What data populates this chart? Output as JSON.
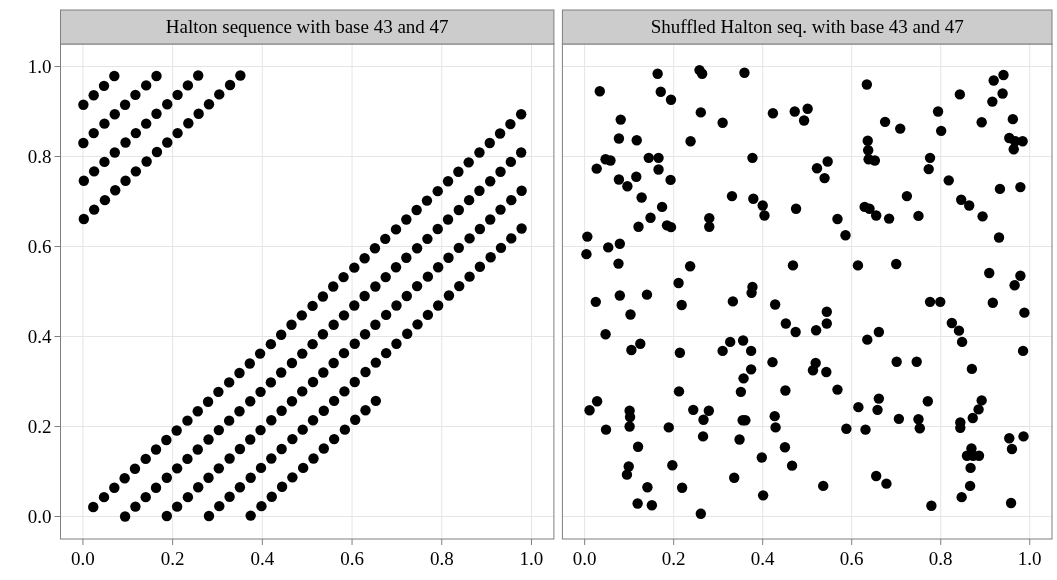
{
  "chart_data": [
    {
      "type": "scatter",
      "title": "Halton sequence with base 43 and 47",
      "color": "#000000",
      "marker": "circle",
      "grid": true,
      "xlim": [
        -0.05,
        1.05
      ],
      "ylim": [
        -0.05,
        1.05
      ],
      "xticks": [
        {
          "value": 0,
          "label": "0.0"
        },
        {
          "value": 0.2,
          "label": "0.2"
        },
        {
          "value": 0.4,
          "label": "0.4"
        },
        {
          "value": 0.6,
          "label": "0.6"
        },
        {
          "value": 0.8,
          "label": "0.8"
        },
        {
          "value": 1,
          "label": "1.0"
        }
      ],
      "yticks": [
        {
          "value": 0,
          "label": "0.0"
        },
        {
          "value": 0.2,
          "label": "0.2"
        },
        {
          "value": 0.4,
          "label": "0.4"
        },
        {
          "value": 0.6,
          "label": "0.6"
        },
        {
          "value": 0.8,
          "label": "0.8"
        },
        {
          "value": 1,
          "label": "1.0"
        }
      ],
      "x": [
        0.023,
        0.047,
        0.07,
        0.093,
        0.116,
        0.14,
        0.163,
        0.186,
        0.209,
        0.233,
        0.256,
        0.279,
        0.302,
        0.326,
        0.349,
        0.372,
        0.395,
        0.419,
        0.442,
        0.465,
        0.488,
        0.512,
        0.535,
        0.558,
        0.581,
        0.605,
        0.628,
        0.651,
        0.674,
        0.698,
        0.721,
        0.744,
        0.767,
        0.791,
        0.814,
        0.837,
        0.86,
        0.884,
        0.907,
        0.93,
        0.953,
        0.977,
        0.001,
        0.024,
        0.047,
        0.07,
        0.094,
        0.117,
        0.14,
        0.163,
        0.187,
        0.21,
        0.233,
        0.256,
        0.28,
        0.303,
        0.326,
        0.349,
        0.373,
        0.396,
        0.419,
        0.442,
        0.466,
        0.489,
        0.512,
        0.535,
        0.559,
        0.582,
        0.605,
        0.628,
        0.652,
        0.675,
        0.698,
        0.721,
        0.745,
        0.768,
        0.791,
        0.814,
        0.838,
        0.861,
        0.884,
        0.908,
        0.931,
        0.954,
        0.977,
        0.001,
        0.024,
        0.048,
        0.071,
        0.094,
        0.117,
        0.141,
        0.164,
        0.187,
        0.21,
        0.234,
        0.257,
        0.28,
        0.303,
        0.327,
        0.35,
        0.373,
        0.396,
        0.42,
        0.443,
        0.466,
        0.489,
        0.513,
        0.536,
        0.559,
        0.582,
        0.606,
        0.629,
        0.652,
        0.676,
        0.699,
        0.722,
        0.745,
        0.769,
        0.792,
        0.815,
        0.838,
        0.862,
        0.885,
        0.908,
        0.931,
        0.955,
        0.978,
        0.002,
        0.025,
        0.048,
        0.071,
        0.095,
        0.118,
        0.141,
        0.164,
        0.188,
        0.211,
        0.234,
        0.257,
        0.281,
        0.304,
        0.327,
        0.35,
        0.374,
        0.397,
        0.42,
        0.443,
        0.467,
        0.49,
        0.513,
        0.537,
        0.56,
        0.583,
        0.606,
        0.63,
        0.653,
        0.676,
        0.699,
        0.723,
        0.746,
        0.769,
        0.792,
        0.816,
        0.839,
        0.862,
        0.885,
        0.909,
        0.932,
        0.955,
        0.978,
        0.002,
        0.025,
        0.049,
        0.072,
        0.095,
        0.118,
        0.142,
        0.165,
        0.188,
        0.211,
        0.235,
        0.258,
        0.281,
        0.304,
        0.328,
        0.351,
        0.374,
        0.398,
        0.421,
        0.444,
        0.467,
        0.491,
        0.514,
        0.537,
        0.56,
        0.584,
        0.607,
        0.63,
        0.653
      ],
      "values": [
        0.021,
        0.043,
        0.064,
        0.085,
        0.106,
        0.128,
        0.149,
        0.17,
        0.191,
        0.213,
        0.234,
        0.255,
        0.277,
        0.298,
        0.319,
        0.34,
        0.362,
        0.383,
        0.404,
        0.426,
        0.447,
        0.468,
        0.489,
        0.511,
        0.532,
        0.553,
        0.574,
        0.596,
        0.617,
        0.638,
        0.66,
        0.681,
        0.702,
        0.723,
        0.745,
        0.766,
        0.787,
        0.809,
        0.83,
        0.851,
        0.872,
        0.894,
        0.915,
        0.936,
        0.957,
        0.979,
        0.0,
        0.022,
        0.043,
        0.064,
        0.086,
        0.107,
        0.128,
        0.149,
        0.171,
        0.192,
        0.213,
        0.234,
        0.256,
        0.277,
        0.298,
        0.32,
        0.341,
        0.362,
        0.383,
        0.405,
        0.426,
        0.447,
        0.469,
        0.49,
        0.511,
        0.532,
        0.554,
        0.575,
        0.596,
        0.617,
        0.639,
        0.66,
        0.681,
        0.703,
        0.724,
        0.745,
        0.766,
        0.788,
        0.809,
        0.83,
        0.852,
        0.873,
        0.894,
        0.915,
        0.937,
        0.958,
        0.979,
        0.001,
        0.022,
        0.043,
        0.065,
        0.086,
        0.107,
        0.129,
        0.15,
        0.171,
        0.192,
        0.214,
        0.235,
        0.256,
        0.278,
        0.299,
        0.32,
        0.341,
        0.363,
        0.384,
        0.405,
        0.426,
        0.448,
        0.469,
        0.49,
        0.512,
        0.533,
        0.554,
        0.575,
        0.597,
        0.618,
        0.639,
        0.66,
        0.682,
        0.703,
        0.724,
        0.746,
        0.767,
        0.788,
        0.809,
        0.831,
        0.852,
        0.873,
        0.895,
        0.916,
        0.937,
        0.958,
        0.98,
        0.001,
        0.023,
        0.044,
        0.065,
        0.086,
        0.108,
        0.129,
        0.15,
        0.172,
        0.193,
        0.214,
        0.235,
        0.257,
        0.278,
        0.299,
        0.321,
        0.342,
        0.363,
        0.384,
        0.406,
        0.427,
        0.448,
        0.469,
        0.491,
        0.512,
        0.533,
        0.555,
        0.576,
        0.597,
        0.618,
        0.64,
        0.661,
        0.682,
        0.703,
        0.725,
        0.746,
        0.767,
        0.789,
        0.81,
        0.831,
        0.852,
        0.874,
        0.895,
        0.916,
        0.938,
        0.959,
        0.98,
        0.002,
        0.023,
        0.044,
        0.066,
        0.087,
        0.108,
        0.129,
        0.151,
        0.172,
        0.193,
        0.215,
        0.236,
        0.257
      ]
    },
    {
      "type": "scatter",
      "title": "Shuffled Halton seq. with base 43 and 47",
      "color": "#000000",
      "marker": "circle",
      "grid": true,
      "tick_labels": "x",
      "xlim": [
        -0.05,
        1.05
      ],
      "ylim": [
        -0.05,
        1.05
      ],
      "xticks": [
        {
          "value": 0,
          "label": "0.0"
        },
        {
          "value": 0.2,
          "label": "0.2"
        },
        {
          "value": 0.4,
          "label": "0.4"
        },
        {
          "value": 0.6,
          "label": "0.6"
        },
        {
          "value": 0.8,
          "label": "0.8"
        },
        {
          "value": 1,
          "label": "1.0"
        }
      ],
      "yticks": [
        0,
        0.2,
        0.4,
        0.6,
        0.8,
        1
      ],
      "x": [
        0.164,
        0.258,
        0.264,
        0.359,
        0.034,
        0.171,
        0.194,
        0.081,
        0.261,
        0.31,
        0.423,
        0.472,
        0.077,
        0.117,
        0.238,
        0.047,
        0.058,
        0.144,
        0.166,
        0.377,
        0.027,
        0.166,
        0.077,
        0.116,
        0.096,
        0.193,
        0.128,
        0.331,
        0.379,
        0.4,
        0.404,
        0.475,
        0.174,
        0.148,
        0.121,
        0.185,
        0.194,
        0.28,
        0.28,
        0.006,
        0.004,
        0.053,
        0.079,
        0.076,
        0.237,
        0.468,
        0.211,
        0.634,
        0.501,
        0.493,
        0.843,
        0.919,
        0.941,
        0.916,
        0.939,
        0.794,
        0.675,
        0.709,
        0.801,
        0.892,
        0.962,
        0.954,
        0.967,
        0.984,
        0.964,
        0.636,
        0.637,
        0.638,
        0.652,
        0.546,
        0.522,
        0.539,
        0.776,
        0.773,
        0.818,
        0.933,
        0.979,
        0.724,
        0.846,
        0.864,
        0.894,
        0.75,
        0.629,
        0.64,
        0.655,
        0.684,
        0.568,
        0.586,
        0.931,
        0.614,
        0.7,
        0.909,
        0.979,
        0.966,
        0.377,
        0.375,
        0.025,
        0.079,
        0.14,
        0.218,
        0.103,
        0.333,
        0.428,
        0.452,
        0.474,
        0.047,
        0.125,
        0.105,
        0.214,
        0.31,
        0.327,
        0.356,
        0.374,
        0.422,
        0.374,
        0.357,
        0.212,
        0.351,
        0.451,
        0.028,
        0.011,
        0.101,
        0.102,
        0.101,
        0.048,
        0.189,
        0.244,
        0.279,
        0.267,
        0.266,
        0.355,
        0.361,
        0.427,
        0.429,
        0.348,
        0.12,
        0.45,
        0.398,
        0.466,
        0.099,
        0.095,
        0.197,
        0.336,
        0.141,
        0.219,
        0.401,
        0.119,
        0.151,
        0.261,
        0.776,
        0.799,
        0.917,
        0.988,
        0.544,
        0.544,
        0.52,
        0.825,
        0.841,
        0.848,
        0.661,
        0.635,
        0.985,
        0.701,
        0.746,
        0.519,
        0.513,
        0.543,
        0.87,
        0.568,
        0.771,
        0.892,
        0.885,
        0.872,
        0.661,
        0.658,
        0.615,
        0.706,
        0.75,
        0.753,
        0.588,
        0.631,
        0.844,
        0.844,
        0.954,
        0.986,
        0.96,
        0.869,
        0.859,
        0.873,
        0.886,
        0.867,
        0.655,
        0.678,
        0.536,
        0.866,
        0.847,
        0.779,
        0.958
      ],
      "values": [
        0.984,
        0.992,
        0.984,
        0.986,
        0.945,
        0.944,
        0.926,
        0.882,
        0.898,
        0.875,
        0.896,
        0.9,
        0.84,
        0.836,
        0.834,
        0.794,
        0.791,
        0.797,
        0.797,
        0.797,
        0.773,
        0.771,
        0.749,
        0.755,
        0.734,
        0.748,
        0.709,
        0.712,
        0.706,
        0.691,
        0.669,
        0.684,
        0.688,
        0.664,
        0.644,
        0.647,
        0.643,
        0.663,
        0.644,
        0.622,
        0.583,
        0.598,
        0.606,
        0.562,
        0.556,
        0.558,
        0.519,
        0.96,
        0.906,
        0.88,
        0.938,
        0.969,
        0.981,
        0.922,
        0.94,
        0.9,
        0.877,
        0.862,
        0.857,
        0.876,
        0.883,
        0.841,
        0.834,
        0.834,
        0.816,
        0.835,
        0.814,
        0.794,
        0.791,
        0.789,
        0.774,
        0.752,
        0.797,
        0.772,
        0.747,
        0.728,
        0.732,
        0.712,
        0.704,
        0.691,
        0.667,
        0.668,
        0.688,
        0.684,
        0.669,
        0.662,
        0.661,
        0.625,
        0.62,
        0.558,
        0.561,
        0.541,
        0.535,
        0.514,
        0.51,
        0.497,
        0.477,
        0.491,
        0.493,
        0.47,
        0.449,
        0.478,
        0.471,
        0.429,
        0.41,
        0.405,
        0.384,
        0.37,
        0.364,
        0.368,
        0.388,
        0.391,
        0.368,
        0.343,
        0.327,
        0.307,
        0.278,
        0.277,
        0.28,
        0.256,
        0.236,
        0.235,
        0.221,
        0.2,
        0.193,
        0.198,
        0.237,
        0.235,
        0.215,
        0.178,
        0.214,
        0.214,
        0.223,
        0.198,
        0.171,
        0.155,
        0.154,
        0.131,
        0.113,
        0.111,
        0.093,
        0.114,
        0.086,
        0.065,
        0.064,
        0.047,
        0.029,
        0.025,
        0.006,
        0.477,
        0.477,
        0.475,
        0.453,
        0.455,
        0.429,
        0.414,
        0.43,
        0.413,
        0.388,
        0.41,
        0.393,
        0.368,
        0.344,
        0.344,
        0.341,
        0.325,
        0.321,
        0.328,
        0.282,
        0.256,
        0.258,
        0.238,
        0.219,
        0.262,
        0.237,
        0.243,
        0.217,
        0.216,
        0.196,
        0.195,
        0.193,
        0.209,
        0.197,
        0.174,
        0.178,
        0.15,
        0.151,
        0.135,
        0.135,
        0.135,
        0.108,
        0.09,
        0.073,
        0.068,
        0.068,
        0.043,
        0.024,
        0.03
      ]
    }
  ]
}
